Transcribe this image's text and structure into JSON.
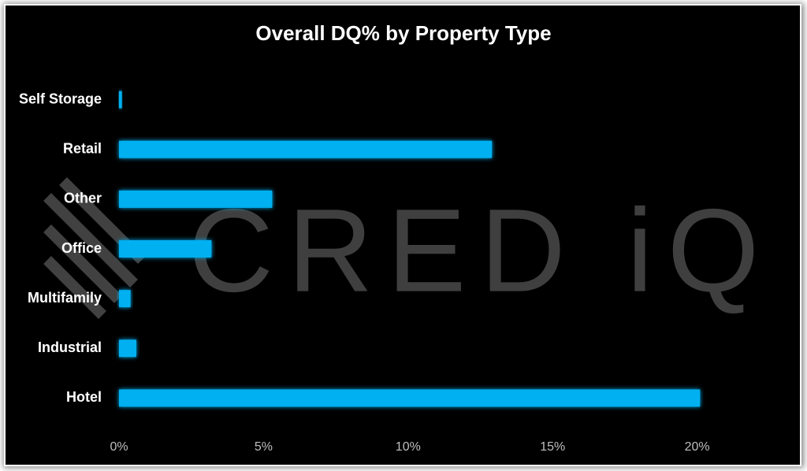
{
  "chart_data": {
    "type": "bar",
    "orientation": "horizontal",
    "title": "Overall DQ% by Property Type",
    "watermark": "CRED iQ",
    "categories": [
      "Self Storage",
      "Retail",
      "Other",
      "Office",
      "Multifamily",
      "Industrial",
      "Hotel"
    ],
    "values": [
      0.1,
      12.9,
      5.3,
      3.2,
      0.4,
      0.6,
      20.1
    ],
    "color": "#00b0f0",
    "xlim": [
      0,
      22
    ],
    "xticks": [
      {
        "value": 0,
        "label": "0%"
      },
      {
        "value": 5,
        "label": "5%"
      },
      {
        "value": 10,
        "label": "10%"
      },
      {
        "value": 15,
        "label": "15%"
      },
      {
        "value": 20,
        "label": "20%"
      }
    ],
    "grid": false
  }
}
